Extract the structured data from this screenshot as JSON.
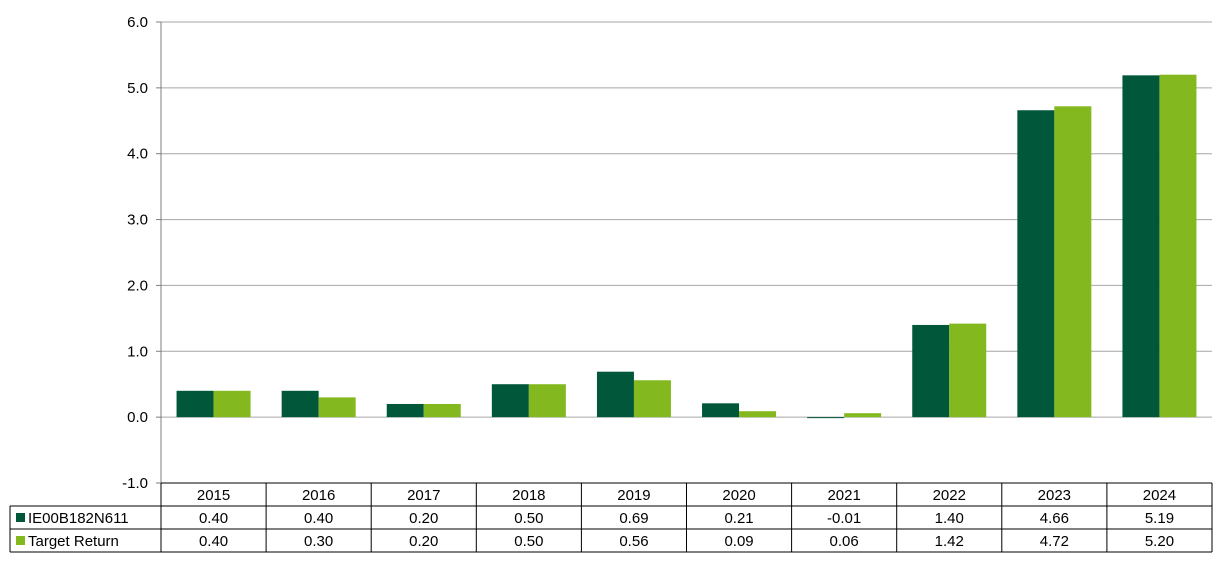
{
  "chart_data": {
    "type": "bar",
    "title": "",
    "xlabel": "",
    "ylabel": "",
    "categories": [
      "2015",
      "2016",
      "2017",
      "2018",
      "2019",
      "2020",
      "2021",
      "2022",
      "2023",
      "2024"
    ],
    "series": [
      {
        "name": "IE00B182N611",
        "color": "#00573A",
        "values": [
          0.4,
          0.4,
          0.2,
          0.5,
          0.69,
          0.21,
          -0.01,
          1.4,
          4.66,
          5.19
        ],
        "labels": [
          "0.40",
          "0.40",
          "0.20",
          "0.50",
          "0.69",
          "0.21",
          "-0.01",
          "1.40",
          "4.66",
          "5.19"
        ]
      },
      {
        "name": "Target Return",
        "color": "#84B81F",
        "values": [
          0.4,
          0.3,
          0.2,
          0.5,
          0.56,
          0.09,
          0.06,
          1.42,
          4.72,
          5.2
        ],
        "labels": [
          "0.40",
          "0.30",
          "0.20",
          "0.50",
          "0.56",
          "0.09",
          "0.06",
          "1.42",
          "4.72",
          "5.20"
        ]
      }
    ],
    "ylim": [
      -1.0,
      6.0
    ],
    "yticks": [
      "6.0",
      "5.0",
      "4.0",
      "3.0",
      "2.0",
      "1.0",
      "0.0",
      "-1.0"
    ],
    "ytick_values": [
      6,
      5,
      4,
      3,
      2,
      1,
      0,
      -1
    ],
    "grid": true,
    "legend": "data-table-left"
  }
}
